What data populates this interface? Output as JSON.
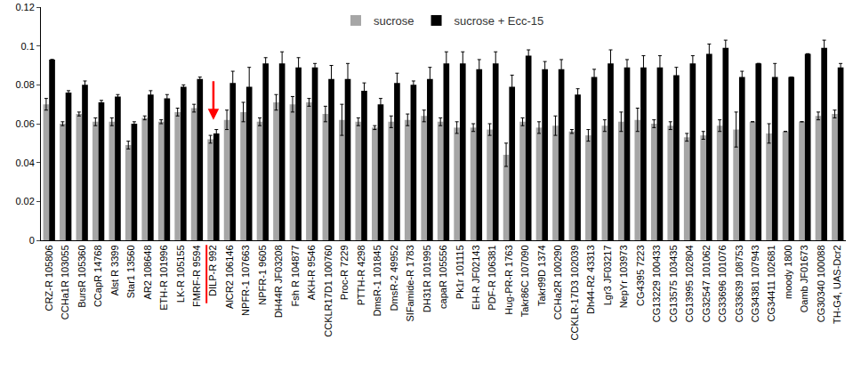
{
  "chart_data": {
    "type": "bar",
    "categories": [
      "CRZ-R 105806",
      "CCHa1R 103055",
      "BursR 105360",
      "CCapR 14768",
      "Alst R 3399",
      "Star1 13560",
      "AR2 108648",
      "ETH-R 101996",
      "LK-R 105155",
      "FMRF-R 9594",
      "DILP-R 992",
      "AlCR2 106146",
      "NPFR-1 107663",
      "NPFR-1 9605",
      "DH44R JF03208",
      "Fsh R 104877",
      "AKH-R 9546",
      "CCKLR17D1 100760",
      "Proc-R 7229",
      "PTTH-R 4298",
      "DmsR-1 101845",
      "DmsR-2 49952",
      "SIFamide-R 1783",
      "DH31R 101995",
      "capaR 105556",
      "Pk1r 101115",
      "EH-R JF02143",
      "PDF-R 106381",
      "Hug-PR-R 1763",
      "Takr86C 107090",
      "Takr99D 1374",
      "CCHa2R 100290",
      "CCKLR-17D3 102039",
      "Dh44-R2 43313",
      "Lgr3 JF03217",
      "NepYr 103973",
      "CG4395 7223",
      "CG13229 100433",
      "CG13575 103435",
      "CG13995 102804",
      "CG32547 101062",
      "CG33696 101076",
      "CG33639 108753",
      "CG34381 107943",
      "CG34411 102681",
      "moody 1800",
      "Oamb JF01673",
      "CG30340 100088",
      "TH-G4, UAS-Dcr2"
    ],
    "series": [
      {
        "name": "sucrose",
        "color": "#a6a6a6",
        "values": [
          0.07,
          0.06,
          0.065,
          0.061,
          0.061,
          0.049,
          0.063,
          0.061,
          0.066,
          0.068,
          0.052,
          0.062,
          0.066,
          0.061,
          0.071,
          0.07,
          0.071,
          0.065,
          0.062,
          0.061,
          0.058,
          0.061,
          0.062,
          0.064,
          0.061,
          0.058,
          0.058,
          0.057,
          0.044,
          0.061,
          0.058,
          0.059,
          0.056,
          0.054,
          0.059,
          0.061,
          0.062,
          0.06,
          0.059,
          0.053,
          0.054,
          0.059,
          0.057,
          0.061,
          0.055,
          0.056,
          0.061,
          0.064,
          0.065
        ],
        "errors": [
          0.003,
          0.001,
          0.001,
          0.002,
          0.002,
          0.002,
          0.001,
          0.001,
          0.002,
          0.002,
          0.002,
          0.005,
          0.005,
          0.002,
          0.004,
          0.004,
          0.002,
          0.004,
          0.008,
          0.002,
          0.001,
          0.003,
          0.003,
          0.003,
          0.002,
          0.003,
          0.002,
          0.003,
          0.006,
          0.002,
          0.003,
          0.005,
          0.001,
          0.003,
          0.003,
          0.005,
          0.006,
          0.002,
          0.002,
          0.002,
          0.002,
          0.003,
          0.009,
          null,
          0.005,
          null,
          null,
          0.002,
          0.002
        ]
      },
      {
        "name": "sucrose + Ecc-15",
        "color": "#000000",
        "values": [
          0.093,
          0.076,
          0.08,
          0.071,
          0.074,
          0.06,
          0.075,
          0.073,
          0.079,
          0.083,
          0.055,
          0.081,
          0.079,
          0.091,
          0.091,
          0.089,
          0.089,
          0.083,
          0.083,
          0.077,
          0.07,
          0.081,
          0.08,
          0.083,
          0.091,
          0.091,
          0.088,
          0.091,
          0.079,
          0.095,
          0.088,
          0.088,
          0.075,
          0.084,
          0.091,
          0.089,
          0.089,
          0.089,
          0.085,
          0.091,
          0.096,
          0.099,
          0.084,
          0.091,
          0.084,
          0.084,
          0.096,
          0.099,
          0.089
        ],
        "errors": [
          null,
          0.001,
          0.002,
          0.001,
          0.001,
          0.001,
          0.002,
          0.002,
          0.001,
          0.001,
          0.002,
          0.006,
          0.01,
          0.003,
          0.006,
          0.005,
          0.002,
          0.007,
          0.008,
          0.004,
          0.003,
          0.005,
          0.002,
          0.006,
          0.006,
          0.006,
          0.005,
          0.006,
          0.006,
          0.003,
          0.004,
          0.005,
          0.003,
          0.004,
          0.007,
          0.004,
          0.006,
          0.006,
          0.004,
          0.004,
          0.005,
          0.004,
          0.003,
          null,
          0.007,
          null,
          null,
          0.004,
          0.002
        ]
      }
    ],
    "ylim": [
      0,
      0.12
    ],
    "yticks": [
      0,
      0.02,
      0.04,
      0.06,
      0.08,
      0.1,
      0.12
    ],
    "grid": false,
    "legend": "top"
  }
}
